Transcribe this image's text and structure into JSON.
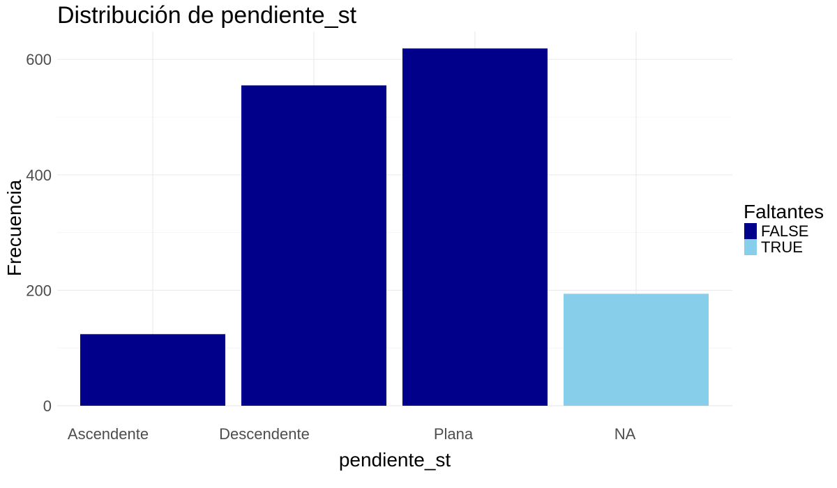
{
  "chart_data": {
    "type": "bar",
    "title": "Distribución de pendiente_st",
    "xlabel": "pendiente_st",
    "ylabel": "Frecuencia",
    "categories": [
      "Ascendente",
      "Descendente",
      "Plana",
      "NA"
    ],
    "values": [
      124,
      555,
      619,
      194
    ],
    "fill_group": [
      "FALSE",
      "FALSE",
      "FALSE",
      "TRUE"
    ],
    "ylim": [
      0,
      650
    ],
    "yticks": [
      0,
      200,
      400,
      600
    ],
    "grid": true,
    "legend": {
      "title": "Faltantes",
      "placement": "right",
      "entries": [
        {
          "label": "FALSE",
          "color": "#00008B"
        },
        {
          "label": "TRUE",
          "color": "#87CEEB"
        }
      ]
    }
  }
}
